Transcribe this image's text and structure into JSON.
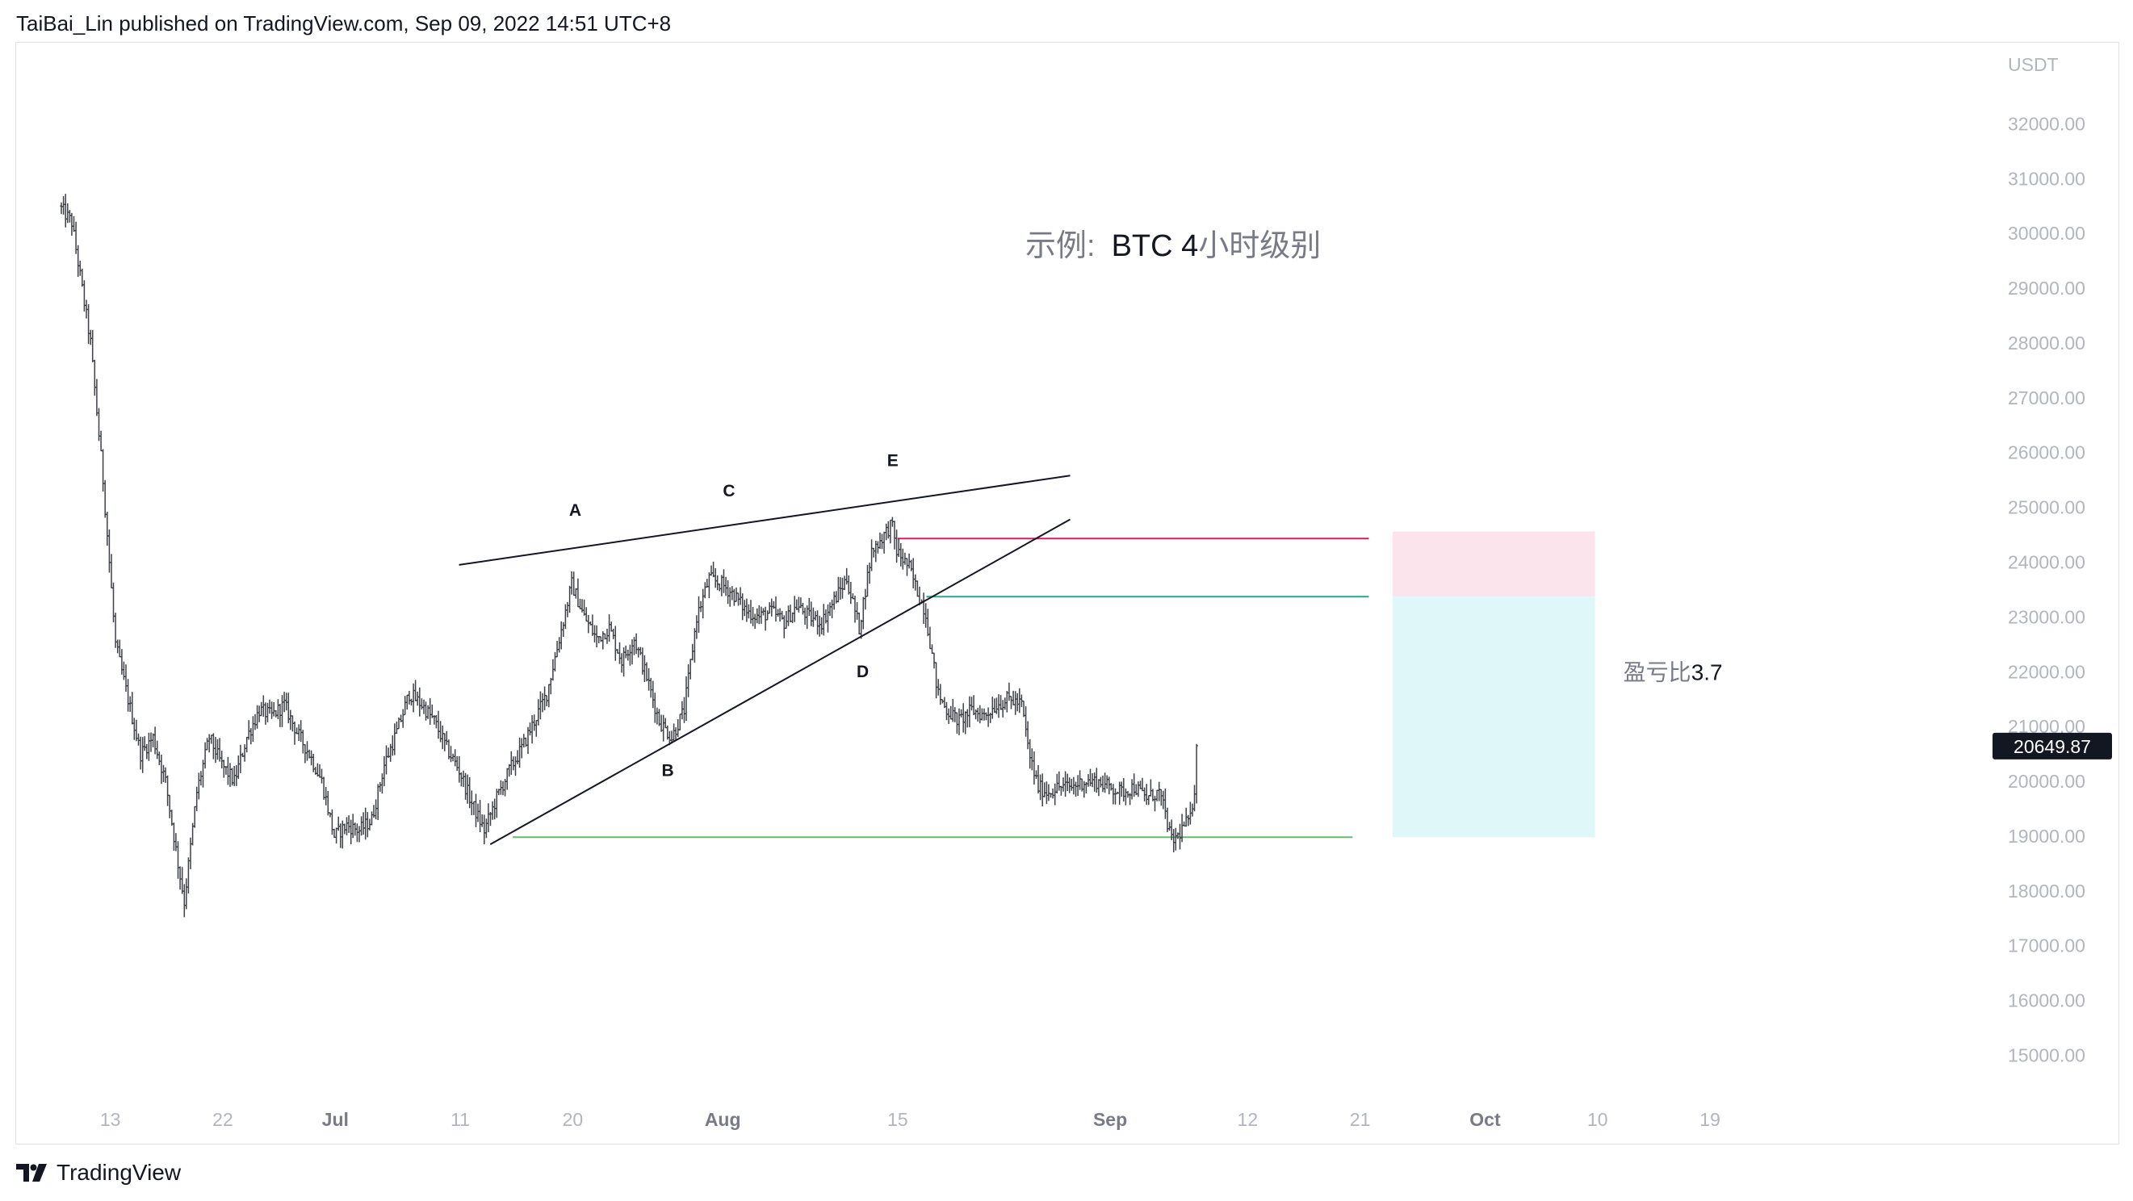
{
  "header": {
    "text": "TaiBai_Lin published on TradingView.com, Sep 09, 2022 14:51 UTC+8"
  },
  "footer": {
    "brand": "TradingView"
  },
  "colors": {
    "candle": "#3d4047",
    "trendline": "#131722",
    "resistance_line": "#d81b60",
    "entry_line": "#26a69a",
    "support_line": "#66bb6a",
    "stop_zone": "#fce4ec",
    "target_zone": "#e0f7fa",
    "price_tag_bg": "#131722",
    "axis_text": "#b2b5be"
  },
  "chart_data": {
    "type": "ohlc",
    "title": "示例:  BTC 4小时级别",
    "title_parts": {
      "prefix": "示例:",
      "highlight": "BTC 4",
      "suffix": "小时级别"
    },
    "unit": "USDT",
    "y_ticks": [
      "15000.00",
      "16000.00",
      "17000.00",
      "18000.00",
      "19000.00",
      "20000.00",
      "21000.00",
      "22000.00",
      "23000.00",
      "24000.00",
      "25000.00",
      "26000.00",
      "27000.00",
      "28000.00",
      "29000.00",
      "30000.00",
      "31000.00",
      "32000.00"
    ],
    "ylim": [
      14500,
      33000
    ],
    "x_ticks": [
      {
        "label": "13",
        "day": -18
      },
      {
        "label": "22",
        "day": -9
      },
      {
        "label": "Jul",
        "day": 0,
        "bold": true
      },
      {
        "label": "11",
        "day": 10
      },
      {
        "label": "20",
        "day": 19
      },
      {
        "label": "Aug",
        "day": 31,
        "bold": true
      },
      {
        "label": "15",
        "day": 45
      },
      {
        "label": "Sep",
        "day": 62,
        "bold": true
      },
      {
        "label": "12",
        "day": 73
      },
      {
        "label": "21",
        "day": 82
      },
      {
        "label": "Oct",
        "day": 92,
        "bold": true
      },
      {
        "label": "10",
        "day": 101
      },
      {
        "label": "19",
        "day": 110
      }
    ],
    "current_price": "20649.87",
    "current_price_value": 20649.87,
    "price_anchors": [
      [
        -22.0,
        30500
      ],
      [
        -21.0,
        30200
      ],
      [
        -19.5,
        28000
      ],
      [
        -18.5,
        25500
      ],
      [
        -17.5,
        22500
      ],
      [
        -16.5,
        21500
      ],
      [
        -15.5,
        20500
      ],
      [
        -14.5,
        20800
      ],
      [
        -13.5,
        20000
      ],
      [
        -12.5,
        18500
      ],
      [
        -12.0,
        17800
      ],
      [
        -11.0,
        19800
      ],
      [
        -10.0,
        20800
      ],
      [
        -9.0,
        20300
      ],
      [
        -8.0,
        20000
      ],
      [
        -7.0,
        20800
      ],
      [
        -6.0,
        21300
      ],
      [
        -5.0,
        21200
      ],
      [
        -4.0,
        21400
      ],
      [
        -3.0,
        20900
      ],
      [
        -2.0,
        20500
      ],
      [
        -1.0,
        20000
      ],
      [
        0.0,
        19000
      ],
      [
        1.0,
        19200
      ],
      [
        2.0,
        19100
      ],
      [
        3.0,
        19300
      ],
      [
        4.0,
        20300
      ],
      [
        5.0,
        20900
      ],
      [
        6.0,
        21600
      ],
      [
        7.0,
        21400
      ],
      [
        8.0,
        21100
      ],
      [
        9.0,
        20600
      ],
      [
        10.0,
        20200
      ],
      [
        11.0,
        19600
      ],
      [
        12.0,
        19100
      ],
      [
        13.0,
        19700
      ],
      [
        14.0,
        20200
      ],
      [
        15.0,
        20600
      ],
      [
        16.0,
        21100
      ],
      [
        17.0,
        21600
      ],
      [
        18.0,
        22600
      ],
      [
        19.0,
        23600
      ],
      [
        20.0,
        23000
      ],
      [
        21.0,
        22600
      ],
      [
        22.0,
        22800
      ],
      [
        23.0,
        22200
      ],
      [
        24.0,
        22600
      ],
      [
        25.0,
        21900
      ],
      [
        26.0,
        21100
      ],
      [
        27.0,
        20800
      ],
      [
        28.0,
        21300
      ],
      [
        29.0,
        23000
      ],
      [
        30.0,
        23700
      ],
      [
        31.0,
        23600
      ],
      [
        32.0,
        23400
      ],
      [
        33.0,
        23100
      ],
      [
        34.0,
        23000
      ],
      [
        35.0,
        23100
      ],
      [
        36.0,
        22900
      ],
      [
        37.0,
        23200
      ],
      [
        38.0,
        23000
      ],
      [
        39.0,
        22900
      ],
      [
        40.0,
        23300
      ],
      [
        41.0,
        23700
      ],
      [
        42.0,
        22800
      ],
      [
        43.0,
        24200
      ],
      [
        44.0,
        24500
      ],
      [
        44.6,
        24700
      ],
      [
        45.0,
        24200
      ],
      [
        46.0,
        23900
      ],
      [
        46.6,
        23500
      ],
      [
        47.3,
        23100
      ],
      [
        48.3,
        21600
      ],
      [
        49.0,
        21300
      ],
      [
        50.0,
        21100
      ],
      [
        51.0,
        21300
      ],
      [
        52.0,
        21200
      ],
      [
        53.0,
        21400
      ],
      [
        54.0,
        21500
      ],
      [
        55.0,
        21400
      ],
      [
        55.6,
        20500
      ],
      [
        56.3,
        19900
      ],
      [
        57.0,
        19800
      ],
      [
        58.0,
        19900
      ],
      [
        59.0,
        19900
      ],
      [
        60.0,
        20000
      ],
      [
        61.0,
        20000
      ],
      [
        62.0,
        19900
      ],
      [
        63.0,
        19800
      ],
      [
        64.0,
        19900
      ],
      [
        65.0,
        19700
      ],
      [
        66.0,
        19800
      ],
      [
        66.5,
        19400
      ],
      [
        67.0,
        18900
      ],
      [
        67.5,
        19000
      ],
      [
        68.0,
        19200
      ],
      [
        68.5,
        19300
      ],
      [
        68.9,
        20000
      ],
      [
        69.0,
        20649.87
      ]
    ],
    "labels": [
      {
        "text": "A",
        "day": 19.2,
        "price": 24850
      },
      {
        "text": "C",
        "day": 31.5,
        "price": 25200
      },
      {
        "text": "E",
        "day": 44.6,
        "price": 25750
      },
      {
        "text": "B",
        "day": 26.6,
        "price": 20100
      },
      {
        "text": "D",
        "day": 42.2,
        "price": 21900
      }
    ],
    "trendlines": [
      {
        "name": "upper-trendline",
        "from": [
          9.9,
          23950
        ],
        "to": [
          58.8,
          25580
        ]
      },
      {
        "name": "lower-trendline",
        "from": [
          12.4,
          18850
        ],
        "to": [
          58.8,
          24780
        ]
      }
    ],
    "horizontal_lines": [
      {
        "name": "resistance-line",
        "price": 24430,
        "from_day": 45.0,
        "to_day": 82.7,
        "color": "resistance_line"
      },
      {
        "name": "entry-line",
        "price": 23370,
        "from_day": 47.3,
        "to_day": 82.7,
        "color": "entry_line"
      },
      {
        "name": "support-line",
        "price": 18980,
        "from_day": 14.2,
        "to_day": 81.4,
        "color": "support_line"
      }
    ],
    "risk_reward": {
      "label": "盈亏比",
      "ratio": "3.7",
      "entry": 23370,
      "stop": 24560,
      "target": 18980,
      "from_day": 84.6,
      "to_day": 100.8
    }
  }
}
